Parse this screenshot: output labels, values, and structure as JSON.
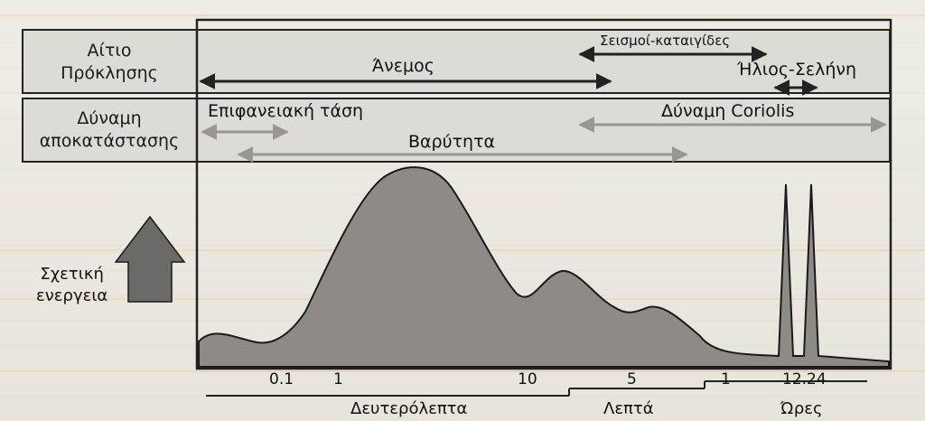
{
  "rows": {
    "cause_label": "Αίτιο\nΠρόκλησης",
    "restore_label": "Δύναμη\nαποκατάστασης"
  },
  "causes": {
    "wind": "Άνεμος",
    "storms": "Σεισμοί-καταιγίδες",
    "sun_moon": "Ήλιος-Σελήνη"
  },
  "forces": {
    "surface_tension": "Επιφανειακή τάση",
    "gravity": "Βαρύτητα",
    "coriolis": "Δύναμη Coriolis"
  },
  "energy_label": "Σχετική\nενεργεια",
  "ticks": [
    "0.1",
    "1",
    "10",
    "5",
    "1",
    "12.24"
  ],
  "units": {
    "seconds": "Δευτερόλεπτα",
    "minutes": "Λεπτά",
    "hours": "Ώρες"
  },
  "colors": {
    "curve_fill": "#8f8a86",
    "arrow_dark": "#222222",
    "arrow_light": "#9a9692",
    "frame": "#222222"
  }
}
